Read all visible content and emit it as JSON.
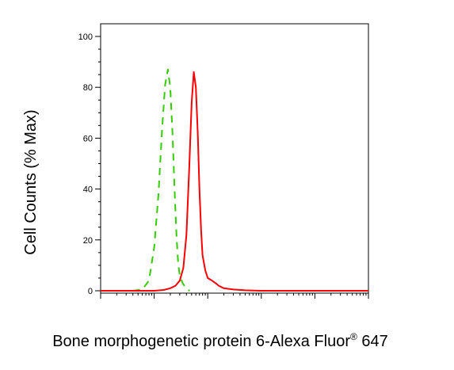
{
  "chart_data": {
    "type": "line",
    "xlabel": "Bone morphogenetic protein 6-Alexa Fluor",
    "xlabel_superscript": "®",
    "xlabel_suffix": " 647",
    "ylabel": "Cell Counts (% Max)",
    "ylim": [
      0,
      100
    ],
    "yticks": [
      0,
      20,
      40,
      60,
      80,
      100
    ],
    "xscale": "log",
    "xlim": [
      1,
      100000
    ],
    "xticklabels_shown": false,
    "grid": false,
    "legend": "none",
    "series": [
      {
        "color": "#33cc00",
        "style": "dashed",
        "x": [
          4.0,
          6.0,
          8.0,
          10.0,
          12.0,
          14.0,
          16.0,
          18.0,
          20.0,
          22.0,
          24.0,
          26.0,
          28.0,
          30.0,
          34.0,
          38.0,
          42.0,
          46.0
        ],
        "y": [
          0,
          0.5,
          4,
          17,
          38,
          63,
          81,
          87,
          80,
          62,
          40,
          22,
          11,
          6,
          3,
          1.5,
          0.5,
          0
        ]
      },
      {
        "color": "#ff0000",
        "style": "solid",
        "x": [
          1,
          10,
          15,
          20,
          25,
          30,
          35,
          40,
          45,
          50,
          55,
          60,
          65,
          70,
          75,
          80,
          90,
          100,
          110,
          120,
          140,
          160,
          200,
          300,
          500,
          1000,
          2000,
          10000,
          100000
        ],
        "y": [
          0,
          0,
          0.3,
          1,
          2,
          4,
          9,
          22,
          48,
          74,
          86,
          80,
          62,
          40,
          24,
          14,
          8,
          5,
          4.5,
          4,
          3,
          2,
          1,
          0.5,
          0.2,
          0,
          0,
          0,
          0
        ]
      }
    ]
  }
}
